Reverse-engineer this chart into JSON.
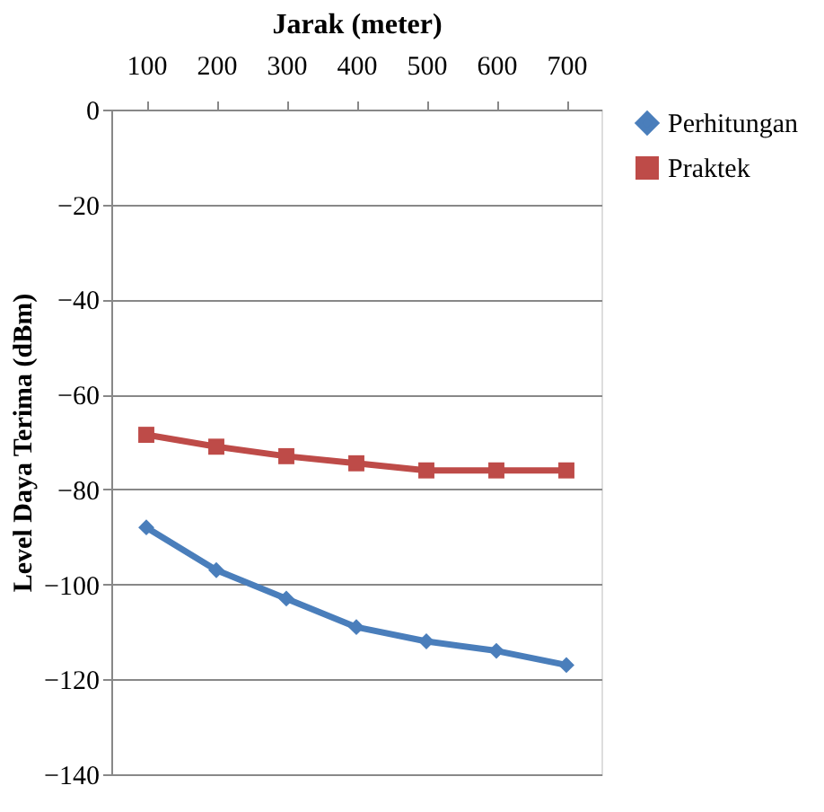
{
  "chart_data": {
    "type": "line",
    "xlabel": "Jarak (meter)",
    "ylabel": "Level Daya Terima (dBm)",
    "categories": [
      "100",
      "200",
      "300",
      "400",
      "500",
      "600",
      "700"
    ],
    "series": [
      {
        "name": "Perhitungan",
        "color": "#4a7ebb",
        "marker": "diamond",
        "values": [
          -88,
          -97,
          -103,
          -109,
          -112,
          -114,
          -117
        ]
      },
      {
        "name": "Praktek",
        "color": "#be4b48",
        "marker": "square",
        "values": [
          -68.5,
          -71,
          -73,
          -74.5,
          -76,
          -76,
          -76
        ]
      }
    ],
    "ylim": [
      -140,
      0
    ],
    "yticks": [
      -140,
      -120,
      -100,
      -80,
      -60,
      -40,
      -20,
      0
    ],
    "grid": "y",
    "legend": "right"
  }
}
